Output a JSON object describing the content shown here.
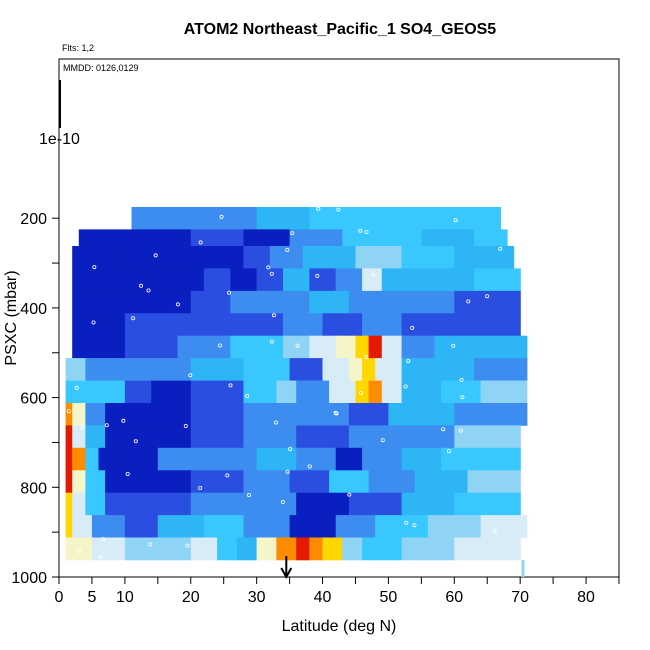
{
  "chart_data": {
    "type": "heatmap",
    "title": "ATOM2 Northeast_Pacific_1 SO4_GEOS5",
    "annotations": {
      "flights": "Flts: 1,2",
      "dates": "MMDD: 0126,0129",
      "marker_label": "1e-10"
    },
    "xlabel": "Latitude (deg N)",
    "ylabel": "PSXC (mbar)",
    "xlim": [
      0,
      85
    ],
    "ylim": [
      1000,
      0
    ],
    "x_ticks": [
      0,
      5,
      10,
      20,
      30,
      40,
      50,
      60,
      70,
      80
    ],
    "x_minor_ticks": [
      15,
      25,
      35,
      45,
      55,
      65,
      75,
      85
    ],
    "y_ticks": [
      200,
      400,
      600,
      800,
      1000
    ],
    "y_minor_ticks": [
      300,
      500,
      700,
      900
    ],
    "arrow_latitude": 34.5,
    "colormap": [
      "#000f8a",
      "#0a1fbf",
      "#2a4fe0",
      "#3d8df0",
      "#2eb5f5",
      "#38c8ff",
      "#8fd4f5",
      "#d8ecf8",
      "#f5f5c8",
      "#ffd700",
      "#ff8c00",
      "#e41a00"
    ],
    "layers": [
      {
        "p_top": 175,
        "p_bot": 225,
        "segments": [
          [
            11,
            20,
            3
          ],
          [
            20,
            30,
            3
          ],
          [
            30,
            38,
            4
          ],
          [
            38,
            48,
            5
          ],
          [
            48,
            67,
            5
          ]
        ]
      },
      {
        "p_top": 225,
        "p_bot": 262,
        "segments": [
          [
            3,
            12,
            1
          ],
          [
            12,
            20,
            1
          ],
          [
            20,
            28,
            2
          ],
          [
            28,
            35,
            1
          ],
          [
            35,
            43,
            3
          ],
          [
            43,
            55,
            5
          ],
          [
            55,
            63,
            4
          ],
          [
            63,
            68,
            5
          ]
        ]
      },
      {
        "p_top": 262,
        "p_bot": 312,
        "segments": [
          [
            2,
            10,
            1
          ],
          [
            10,
            20,
            1
          ],
          [
            20,
            28,
            1
          ],
          [
            28,
            32,
            2
          ],
          [
            32,
            37,
            3
          ],
          [
            37,
            45,
            4
          ],
          [
            45,
            52,
            6
          ],
          [
            52,
            60,
            5
          ],
          [
            60,
            69,
            4
          ]
        ]
      },
      {
        "p_top": 312,
        "p_bot": 362,
        "segments": [
          [
            2,
            8,
            1
          ],
          [
            8,
            15,
            1
          ],
          [
            15,
            22,
            1
          ],
          [
            22,
            26,
            2
          ],
          [
            26,
            30,
            1
          ],
          [
            30,
            34,
            2
          ],
          [
            34,
            38,
            4
          ],
          [
            38,
            42,
            2
          ],
          [
            42,
            46,
            3
          ],
          [
            46,
            49,
            7
          ],
          [
            49,
            55,
            4
          ],
          [
            55,
            63,
            4
          ],
          [
            63,
            70,
            5
          ]
        ]
      },
      {
        "p_top": 362,
        "p_bot": 412,
        "segments": [
          [
            2,
            12,
            1
          ],
          [
            12,
            20,
            1
          ],
          [
            20,
            26,
            2
          ],
          [
            26,
            32,
            3
          ],
          [
            32,
            38,
            3
          ],
          [
            38,
            44,
            4
          ],
          [
            44,
            50,
            3
          ],
          [
            50,
            60,
            3
          ],
          [
            60,
            70,
            2
          ]
        ]
      },
      {
        "p_top": 412,
        "p_bot": 462,
        "segments": [
          [
            2,
            10,
            1
          ],
          [
            10,
            18,
            2
          ],
          [
            18,
            26,
            2
          ],
          [
            26,
            34,
            2
          ],
          [
            34,
            40,
            3
          ],
          [
            40,
            46,
            2
          ],
          [
            46,
            52,
            3
          ],
          [
            52,
            60,
            2
          ],
          [
            60,
            70,
            2
          ]
        ]
      },
      {
        "p_top": 462,
        "p_bot": 512,
        "segments": [
          [
            2,
            10,
            1
          ],
          [
            10,
            18,
            2
          ],
          [
            18,
            26,
            3
          ],
          [
            26,
            34,
            5
          ],
          [
            34,
            38,
            6
          ],
          [
            38,
            42,
            7
          ],
          [
            42,
            45,
            8
          ],
          [
            45,
            47,
            9
          ],
          [
            47,
            49,
            11
          ],
          [
            49,
            52,
            7
          ],
          [
            52,
            57,
            3
          ],
          [
            57,
            63,
            4
          ],
          [
            63,
            71,
            4
          ]
        ]
      },
      {
        "p_top": 512,
        "p_bot": 562,
        "segments": [
          [
            1,
            4,
            6
          ],
          [
            4,
            12,
            3
          ],
          [
            12,
            20,
            3
          ],
          [
            20,
            28,
            4
          ],
          [
            28,
            35,
            5
          ],
          [
            35,
            40,
            2
          ],
          [
            40,
            44,
            7
          ],
          [
            44,
            46,
            8
          ],
          [
            46,
            48,
            9
          ],
          [
            48,
            52,
            7
          ],
          [
            52,
            57,
            4
          ],
          [
            57,
            63,
            4
          ],
          [
            63,
            71,
            3
          ]
        ]
      },
      {
        "p_top": 562,
        "p_bot": 612,
        "segments": [
          [
            1,
            5,
            5
          ],
          [
            5,
            10,
            5
          ],
          [
            10,
            14,
            2
          ],
          [
            14,
            20,
            1
          ],
          [
            20,
            28,
            2
          ],
          [
            28,
            33,
            5
          ],
          [
            33,
            36,
            6
          ],
          [
            36,
            41,
            3
          ],
          [
            41,
            45,
            7
          ],
          [
            45,
            47,
            9
          ],
          [
            47,
            49,
            10
          ],
          [
            49,
            52,
            7
          ],
          [
            52,
            58,
            4
          ],
          [
            58,
            64,
            5
          ],
          [
            64,
            71,
            6
          ]
        ]
      },
      {
        "p_top": 612,
        "p_bot": 662,
        "segments": [
          [
            1,
            2,
            10
          ],
          [
            2,
            4,
            8
          ],
          [
            4,
            7,
            3
          ],
          [
            7,
            12,
            1
          ],
          [
            12,
            20,
            1
          ],
          [
            20,
            28,
            2
          ],
          [
            28,
            36,
            3
          ],
          [
            36,
            44,
            3
          ],
          [
            44,
            50,
            2
          ],
          [
            50,
            60,
            4
          ],
          [
            60,
            71,
            3
          ]
        ]
      },
      {
        "p_top": 662,
        "p_bot": 712,
        "segments": [
          [
            1,
            2,
            11
          ],
          [
            2,
            4,
            7
          ],
          [
            4,
            7,
            4
          ],
          [
            7,
            12,
            1
          ],
          [
            12,
            20,
            1
          ],
          [
            20,
            28,
            2
          ],
          [
            28,
            36,
            3
          ],
          [
            36,
            44,
            2
          ],
          [
            44,
            52,
            3
          ],
          [
            52,
            60,
            3
          ],
          [
            60,
            70,
            6
          ]
        ]
      },
      {
        "p_top": 712,
        "p_bot": 762,
        "segments": [
          [
            1,
            2,
            11
          ],
          [
            2,
            4,
            10
          ],
          [
            4,
            6,
            5
          ],
          [
            6,
            10,
            1
          ],
          [
            10,
            15,
            1
          ],
          [
            15,
            22,
            3
          ],
          [
            22,
            30,
            3
          ],
          [
            30,
            36,
            4
          ],
          [
            36,
            42,
            3
          ],
          [
            42,
            46,
            1
          ],
          [
            46,
            52,
            3
          ],
          [
            52,
            58,
            4
          ],
          [
            58,
            70,
            5
          ]
        ]
      },
      {
        "p_top": 762,
        "p_bot": 812,
        "segments": [
          [
            1,
            2,
            11
          ],
          [
            2,
            4,
            8
          ],
          [
            4,
            7,
            5
          ],
          [
            7,
            12,
            1
          ],
          [
            12,
            20,
            1
          ],
          [
            20,
            28,
            2
          ],
          [
            28,
            35,
            3
          ],
          [
            35,
            41,
            2
          ],
          [
            41,
            47,
            5
          ],
          [
            47,
            54,
            3
          ],
          [
            54,
            62,
            4
          ],
          [
            62,
            70,
            6
          ]
        ]
      },
      {
        "p_top": 812,
        "p_bot": 862,
        "segments": [
          [
            1,
            2,
            9
          ],
          [
            2,
            4,
            7
          ],
          [
            4,
            7,
            5
          ],
          [
            7,
            12,
            2
          ],
          [
            12,
            20,
            2
          ],
          [
            20,
            28,
            3
          ],
          [
            28,
            36,
            3
          ],
          [
            36,
            44,
            1
          ],
          [
            44,
            52,
            2
          ],
          [
            52,
            60,
            4
          ],
          [
            60,
            70,
            5
          ]
        ]
      },
      {
        "p_top": 862,
        "p_bot": 912,
        "segments": [
          [
            1,
            2,
            9
          ],
          [
            2,
            5,
            7
          ],
          [
            5,
            10,
            3
          ],
          [
            10,
            15,
            2
          ],
          [
            15,
            22,
            4
          ],
          [
            22,
            28,
            5
          ],
          [
            28,
            35,
            3
          ],
          [
            35,
            42,
            1
          ],
          [
            42,
            48,
            3
          ],
          [
            48,
            56,
            5
          ],
          [
            56,
            64,
            6
          ],
          [
            64,
            71,
            7
          ]
        ]
      },
      {
        "p_top": 912,
        "p_bot": 962,
        "segments": [
          [
            1,
            5,
            8
          ],
          [
            5,
            10,
            7
          ],
          [
            10,
            15,
            6
          ],
          [
            15,
            20,
            6
          ],
          [
            20,
            24,
            7
          ],
          [
            24,
            27,
            5
          ],
          [
            27,
            30,
            4
          ],
          [
            30,
            33,
            8
          ],
          [
            33,
            36,
            10
          ],
          [
            36,
            38,
            11
          ],
          [
            38,
            40,
            10
          ],
          [
            40,
            43,
            9
          ],
          [
            43,
            46,
            6
          ],
          [
            46,
            52,
            5
          ],
          [
            52,
            60,
            6
          ],
          [
            60,
            70,
            7
          ]
        ]
      }
    ]
  }
}
